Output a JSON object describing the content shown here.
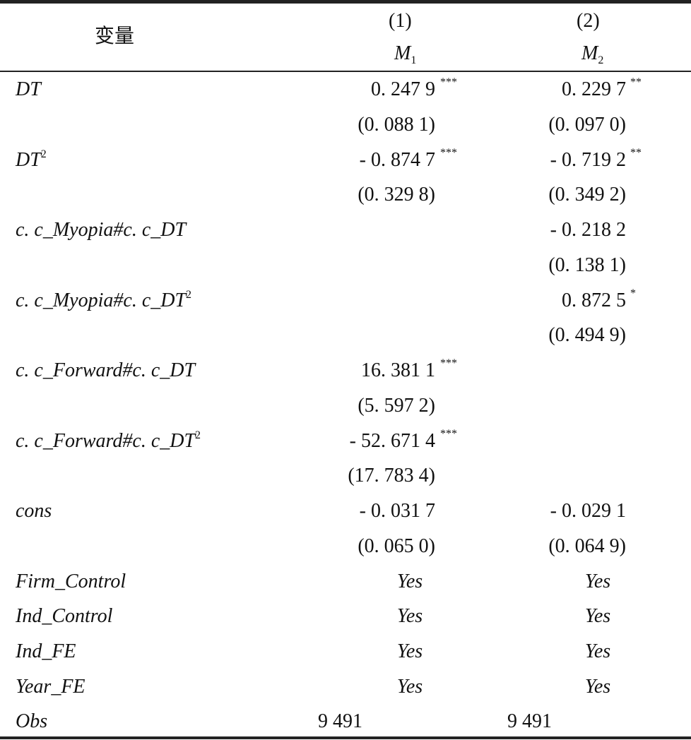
{
  "header": {
    "variable_label": "变量",
    "columns": [
      {
        "number": "(1)",
        "model": "M",
        "model_sub": "1"
      },
      {
        "number": "(2)",
        "model": "M",
        "model_sub": "2"
      }
    ]
  },
  "rows": [
    {
      "label": "DT",
      "sup": "",
      "c1": "0. 247 9",
      "c1_stars": "***",
      "c2": "0. 229 7",
      "c2_stars": "**"
    },
    {
      "label": "",
      "sup": "",
      "c1": "(0. 088 1)",
      "c1_stars": "",
      "c2": "(0. 097 0)",
      "c2_stars": ""
    },
    {
      "label": "DT",
      "sup": "2",
      "c1": "- 0. 874 7",
      "c1_stars": "***",
      "c2": "- 0. 719 2",
      "c2_stars": "**"
    },
    {
      "label": "",
      "sup": "",
      "c1": "(0. 329 8)",
      "c1_stars": "",
      "c2": "(0. 349 2)",
      "c2_stars": ""
    },
    {
      "label": "c. c_Myopia#c. c_DT",
      "sup": "",
      "c1": "",
      "c1_stars": "",
      "c2": "- 0. 218 2",
      "c2_stars": ""
    },
    {
      "label": "",
      "sup": "",
      "c1": "",
      "c1_stars": "",
      "c2": "(0. 138 1)",
      "c2_stars": ""
    },
    {
      "label": "c. c_Myopia#c. c_DT",
      "sup": "2",
      "c1": "",
      "c1_stars": "",
      "c2": "0. 872 5",
      "c2_stars": "*"
    },
    {
      "label": "",
      "sup": "",
      "c1": "",
      "c1_stars": "",
      "c2": "(0. 494 9)",
      "c2_stars": ""
    },
    {
      "label": "c. c_Forward#c. c_DT",
      "sup": "",
      "c1": "16. 381 1",
      "c1_stars": "***",
      "c2": "",
      "c2_stars": ""
    },
    {
      "label": "",
      "sup": "",
      "c1": "(5. 597 2)",
      "c1_stars": "",
      "c2": "",
      "c2_stars": ""
    },
    {
      "label": "c. c_Forward#c. c_DT",
      "sup": "2",
      "c1": "- 52. 671 4",
      "c1_stars": "***",
      "c2": "",
      "c2_stars": ""
    },
    {
      "label": "",
      "sup": "",
      "c1": "(17. 783 4)",
      "c1_stars": "",
      "c2": "",
      "c2_stars": ""
    },
    {
      "label": "cons",
      "sup": "",
      "c1": "- 0. 031 7",
      "c1_stars": "",
      "c2": "- 0. 029 1",
      "c2_stars": ""
    },
    {
      "label": "",
      "sup": "",
      "c1": "(0. 065 0)",
      "c1_stars": "",
      "c2": "(0. 064 9)",
      "c2_stars": ""
    }
  ],
  "controls": [
    {
      "label": "Firm_Control",
      "c1": "Yes",
      "c2": "Yes"
    },
    {
      "label": "Ind_Control",
      "c1": "Yes",
      "c2": "Yes"
    },
    {
      "label": "Ind_FE",
      "c1": "Yes",
      "c2": "Yes"
    },
    {
      "label": "Year_FE",
      "c1": "Yes",
      "c2": "Yes"
    }
  ],
  "obs": {
    "label": "Obs",
    "c1": "9 491",
    "c2": "9 491"
  }
}
